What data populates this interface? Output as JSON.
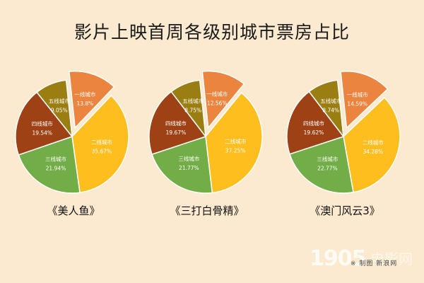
{
  "colors": {
    "background": "#fbeacf",
    "tier1": "#eb843f",
    "tier2": "#fdbe1e",
    "tier3": "#72ad47",
    "tier4": "#9e4215",
    "tier5": "#9a7e12"
  },
  "chart_data": {
    "title": "影片上映首周各级别城市票房占比",
    "type": "pie",
    "categories": [
      "一线城市",
      "二线城市",
      "三线城市",
      "四线城市",
      "五线城市"
    ],
    "exploded_category": "一线城市",
    "charts": [
      {
        "film": "《美人鱼》",
        "values": [
          13.8,
          35.67,
          21.94,
          19.54,
          9.05
        ],
        "labels": [
          "13.8%",
          "35.67%",
          "21.94%",
          "19.54%",
          "9.05%"
        ]
      },
      {
        "film": "《三打白骨精》",
        "values": [
          12.56,
          37.25,
          21.77,
          19.67,
          8.75
        ],
        "labels": [
          "12.56%",
          "37.25%",
          "21.77%",
          "19.67%",
          "8.75%"
        ]
      },
      {
        "film": "《澳门风云3》",
        "values": [
          14.59,
          34.28,
          22.77,
          19.62,
          8.74
        ],
        "labels": [
          "14.59%",
          "34.28%",
          "22.77%",
          "19.62%",
          "8.74%"
        ]
      }
    ]
  },
  "watermark": {
    "number": "1905",
    "site": "电影网",
    "sub": "※ 制图 新浪网"
  }
}
